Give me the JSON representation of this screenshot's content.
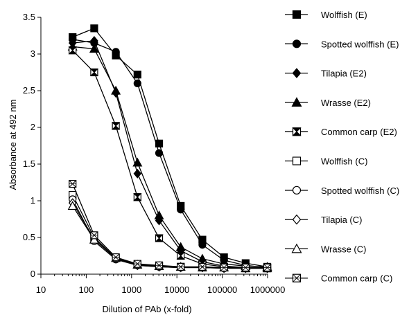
{
  "chart_data": {
    "type": "line",
    "title": "",
    "xlabel": "Dilution of PAb (x-fold)",
    "ylabel": "Absorbance at  492 nm",
    "x_scale": "log",
    "xlim": [
      10,
      1000000
    ],
    "ylim": [
      0,
      3.5
    ],
    "x_ticks": [
      10,
      100,
      1000,
      10000,
      100000,
      1000000
    ],
    "x_tick_labels": [
      "10",
      "100",
      "1000",
      "10000",
      "100000",
      "1000000"
    ],
    "y_ticks": [
      0,
      0.5,
      1,
      1.5,
      2,
      2.5,
      3,
      3.5
    ],
    "y_tick_labels": [
      "0",
      "0.5",
      "1",
      "1.5",
      "2",
      "2.5",
      "3",
      "3.5"
    ],
    "grid": false,
    "legend_position": "right",
    "x": [
      50,
      150,
      450,
      1350,
      4050,
      12150,
      36450,
      109350,
      328050,
      984150
    ],
    "series": [
      {
        "name": "Wolffish (E)",
        "marker": "square-filled",
        "values": [
          3.23,
          3.35,
          2.98,
          2.72,
          1.78,
          0.93,
          0.47,
          0.23,
          0.15,
          0.1
        ]
      },
      {
        "name": "Spotted wolffish (E)",
        "marker": "circle-filled",
        "values": [
          3.2,
          3.15,
          3.03,
          2.6,
          1.65,
          0.88,
          0.4,
          0.19,
          0.12,
          0.09
        ]
      },
      {
        "name": "Tilapia (E2)",
        "marker": "diamond-filled",
        "values": [
          3.15,
          3.18,
          2.47,
          1.37,
          0.73,
          0.32,
          0.17,
          0.11,
          0.09,
          0.08
        ]
      },
      {
        "name": "Wrasse (E2)",
        "marker": "triangle-filled",
        "values": [
          3.1,
          3.07,
          2.5,
          1.52,
          0.8,
          0.37,
          0.21,
          0.14,
          0.11,
          0.1
        ]
      },
      {
        "name": "Common carp (E2)",
        "marker": "hourglass-filled",
        "values": [
          3.05,
          2.75,
          2.02,
          1.05,
          0.49,
          0.25,
          0.14,
          0.1,
          0.09,
          0.08
        ]
      },
      {
        "name": "Wolffish (C)",
        "marker": "square-open",
        "values": [
          1.08,
          0.5,
          0.22,
          0.13,
          0.11,
          0.1,
          0.09,
          0.09,
          0.08,
          0.08
        ]
      },
      {
        "name": "Spotted wolffish (C)",
        "marker": "circle-open",
        "values": [
          1.02,
          0.45,
          0.2,
          0.12,
          0.1,
          0.09,
          0.09,
          0.08,
          0.08,
          0.08
        ]
      },
      {
        "name": "Tilapia (C)",
        "marker": "diamond-open",
        "values": [
          0.97,
          0.48,
          0.21,
          0.12,
          0.1,
          0.09,
          0.09,
          0.08,
          0.08,
          0.08
        ]
      },
      {
        "name": "Wrasse (C)",
        "marker": "triangle-open",
        "values": [
          0.93,
          0.47,
          0.22,
          0.13,
          0.11,
          0.1,
          0.09,
          0.09,
          0.08,
          0.08
        ]
      },
      {
        "name": "Common carp (C)",
        "marker": "hourglass-open",
        "values": [
          1.23,
          0.53,
          0.23,
          0.14,
          0.12,
          0.1,
          0.1,
          0.09,
          0.09,
          0.09
        ]
      }
    ]
  }
}
